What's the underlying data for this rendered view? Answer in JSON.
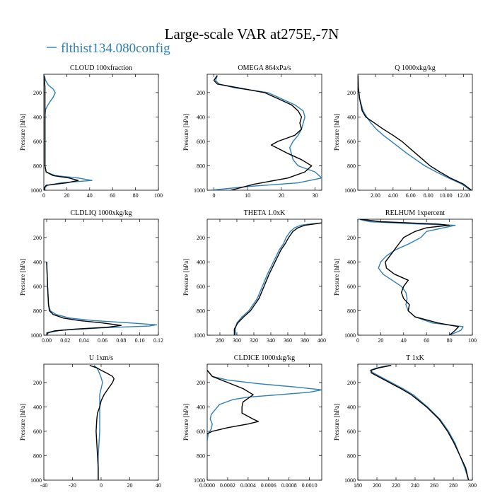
{
  "title": "Large-scale VAR at275E,-7N",
  "legend": {
    "label": "flthist134.080config",
    "color": "#2e7fb5"
  },
  "colors": {
    "series_0": "#2e7fb5",
    "series_1": "#000000"
  },
  "chart_data": [
    {
      "type": "line",
      "title": "CLOUD  100xfraction",
      "ylabel": "Pressure [hPa]",
      "xlabel": "",
      "xlim": [
        0,
        100
      ],
      "ylim": [
        1000,
        50
      ],
      "y_inverted": true,
      "xticks": [
        "0",
        "20",
        "40",
        "60",
        "80",
        "100"
      ],
      "xtick_values": [
        0,
        20,
        40,
        60,
        80,
        100
      ],
      "yticks": [
        "200",
        "400",
        "600",
        "800",
        "1000"
      ],
      "ytick_values": [
        200,
        400,
        600,
        800,
        1000
      ],
      "series": [
        {
          "y": [
            60,
            100,
            140,
            170,
            200,
            240,
            280,
            310,
            340,
            400,
            600,
            800,
            850,
            880,
            900,
            920,
            940,
            960,
            980,
            1000
          ],
          "x": [
            0.5,
            1.5,
            4,
            8,
            10,
            8,
            5,
            3,
            1.5,
            1,
            1,
            1,
            2,
            10,
            30,
            42,
            15,
            3,
            1,
            1
          ]
        },
        {
          "y": [
            60,
            100,
            150,
            200,
            300,
            400,
            600,
            800,
            850,
            880,
            900,
            920,
            940,
            960,
            980,
            1000
          ],
          "x": [
            0,
            0.5,
            1,
            1,
            1,
            1,
            1,
            1,
            2,
            8,
            22,
            30,
            20,
            2,
            0.5,
            0.5
          ]
        }
      ]
    },
    {
      "type": "line",
      "title": "OMEGA  864xPa/s",
      "ylabel": "Pressure [hPa]",
      "xlabel": "",
      "xlim": [
        -2,
        32
      ],
      "ylim": [
        1000,
        50
      ],
      "y_inverted": true,
      "xticks": [
        "0",
        "10",
        "20",
        "30"
      ],
      "xtick_values": [
        0,
        10,
        20,
        30
      ],
      "yticks": [
        "200",
        "400",
        "600",
        "800",
        "1000"
      ],
      "ytick_values": [
        200,
        400,
        600,
        800,
        1000
      ],
      "series": [
        {
          "y": [
            60,
            100,
            130,
            160,
            200,
            250,
            300,
            350,
            400,
            450,
            500,
            550,
            600,
            650,
            700,
            750,
            800,
            850,
            900,
            940,
            970,
            1000
          ],
          "x": [
            1,
            0.5,
            1.5,
            6,
            16,
            20,
            24,
            26.5,
            27,
            26.5,
            26,
            25,
            23.5,
            22.5,
            23,
            23.5,
            25,
            30,
            32,
            25,
            10,
            -1
          ]
        },
        {
          "y": [
            60,
            100,
            130,
            160,
            200,
            250,
            300,
            350,
            400,
            450,
            500,
            550,
            600,
            630,
            650,
            700,
            750,
            800,
            850,
            900,
            950,
            1000
          ],
          "x": [
            1,
            0,
            1,
            7,
            15,
            19,
            23,
            25,
            26,
            25.5,
            26,
            24,
            19,
            17,
            18.5,
            22,
            26,
            29,
            27,
            22,
            12,
            5
          ]
        }
      ]
    },
    {
      "type": "line",
      "title": "Q  1000xkg/kg",
      "ylabel": "Pressure [hPa]",
      "xlabel": "",
      "xlim": [
        0,
        13
      ],
      "ylim": [
        1000,
        50
      ],
      "y_inverted": true,
      "xticks": [
        "2.00",
        "4.00",
        "6.00",
        "8.00",
        "10.00",
        "12.00"
      ],
      "xtick_values": [
        2,
        4,
        6,
        8,
        10,
        12
      ],
      "yticks": [
        "200",
        "400",
        "600",
        "800",
        "1000"
      ],
      "ytick_values": [
        200,
        400,
        600,
        800,
        1000
      ],
      "series": [
        {
          "y": [
            60,
            150,
            250,
            350,
            400,
            450,
            500,
            550,
            600,
            650,
            700,
            750,
            800,
            850,
            900,
            950,
            1000
          ],
          "x": [
            0.02,
            0.05,
            0.2,
            0.6,
            1,
            1.5,
            2.1,
            2.9,
            3.8,
            4.7,
            5.6,
            6.6,
            7.6,
            8.9,
            10.3,
            11.8,
            12.8
          ]
        },
        {
          "y": [
            60,
            150,
            250,
            350,
            400,
            450,
            500,
            550,
            600,
            650,
            700,
            750,
            800,
            850,
            900,
            950,
            1000
          ],
          "x": [
            0.02,
            0.05,
            0.2,
            0.5,
            0.9,
            1.9,
            2.9,
            4,
            5,
            5.8,
            6.6,
            7.4,
            8.2,
            9.3,
            10.5,
            12,
            12.9
          ]
        }
      ]
    },
    {
      "type": "line",
      "title": "CLDLIQ  1000xkg/kg",
      "ylabel": "Pressure [hPa]",
      "xlabel": "",
      "xlim": [
        -0.003,
        0.12
      ],
      "ylim": [
        1000,
        50
      ],
      "y_inverted": true,
      "xticks": [
        "0.00",
        "0.02",
        "0.04",
        "0.06",
        "0.08",
        "0.10",
        "0.12"
      ],
      "xtick_values": [
        0,
        0.02,
        0.04,
        0.06,
        0.08,
        0.1,
        0.12
      ],
      "yticks": [
        "200",
        "400",
        "600",
        "800",
        "1000"
      ],
      "ytick_values": [
        200,
        400,
        600,
        800,
        1000
      ],
      "series": [
        {
          "y": [
            400,
            600,
            750,
            800,
            830,
            860,
            880,
            900,
            915,
            925,
            940,
            960,
            980,
            1000
          ],
          "x": [
            0,
            0.001,
            0.002,
            0.004,
            0.01,
            0.025,
            0.05,
            0.09,
            0.118,
            0.11,
            0.06,
            0.015,
            0.002,
            0
          ]
        },
        {
          "y": [
            400,
            600,
            750,
            800,
            830,
            860,
            880,
            900,
            920,
            935,
            950,
            965,
            980,
            1000
          ],
          "x": [
            0,
            0.001,
            0.002,
            0.003,
            0.007,
            0.018,
            0.035,
            0.06,
            0.08,
            0.065,
            0.03,
            0.008,
            0.001,
            0
          ]
        }
      ]
    },
    {
      "type": "line",
      "title": "THETA  1.0xK",
      "ylabel": "Pressure [hPa]",
      "xlabel": "",
      "xlim": [
        265,
        400
      ],
      "ylim": [
        1000,
        50
      ],
      "y_inverted": true,
      "xticks": [
        "280",
        "300",
        "320",
        "340",
        "360",
        "380",
        "400"
      ],
      "xtick_values": [
        280,
        300,
        320,
        340,
        360,
        380,
        400
      ],
      "yticks": [
        "200",
        "400",
        "600",
        "800",
        "1000"
      ],
      "ytick_values": [
        200,
        400,
        600,
        800,
        1000
      ],
      "series": [
        {
          "y": [
            80,
            90,
            100,
            120,
            150,
            200,
            250,
            300,
            400,
            500,
            600,
            700,
            800,
            850,
            900,
            950,
            1000
          ],
          "x": [
            400,
            385,
            375,
            368,
            363,
            358,
            355,
            350,
            343,
            336,
            330,
            324,
            314,
            306,
            300,
            298,
            299
          ]
        },
        {
          "y": [
            80,
            90,
            100,
            120,
            150,
            200,
            250,
            300,
            400,
            500,
            600,
            700,
            800,
            850,
            900,
            950,
            1000
          ],
          "x": [
            400,
            390,
            380,
            372,
            366,
            361,
            357,
            352,
            345,
            338,
            332,
            326,
            316,
            308,
            301,
            297,
            297
          ]
        }
      ]
    },
    {
      "type": "line",
      "title": "RELHUM  1xpercent",
      "ylabel": "Pressure [hPa]",
      "xlabel": "",
      "xlim": [
        0,
        100
      ],
      "ylim": [
        1000,
        50
      ],
      "y_inverted": true,
      "xticks": [
        "0",
        "20",
        "40",
        "60",
        "80",
        "100"
      ],
      "xtick_values": [
        0,
        20,
        40,
        60,
        80,
        100
      ],
      "yticks": [
        "200",
        "400",
        "600",
        "800",
        "1000"
      ],
      "ytick_values": [
        200,
        400,
        600,
        800,
        1000
      ],
      "series": [
        {
          "y": [
            50,
            70,
            90,
            100,
            120,
            150,
            200,
            250,
            300,
            350,
            400,
            450,
            500,
            550,
            600,
            650,
            700,
            750,
            800,
            850,
            900,
            930,
            960,
            1000
          ],
          "x": [
            1,
            10,
            55,
            85,
            75,
            60,
            55,
            45,
            33,
            25,
            20,
            18,
            22,
            30,
            38,
            42,
            43,
            42,
            44,
            50,
            65,
            92,
            90,
            80
          ]
        },
        {
          "y": [
            50,
            70,
            90,
            100,
            120,
            150,
            200,
            250,
            300,
            350,
            400,
            450,
            500,
            550,
            600,
            650,
            700,
            750,
            800,
            850,
            900,
            930,
            960,
            1000
          ],
          "x": [
            2,
            20,
            70,
            80,
            60,
            50,
            40,
            36,
            32,
            28,
            24,
            25,
            32,
            44,
            40,
            38,
            40,
            45,
            44,
            50,
            70,
            88,
            85,
            80
          ]
        }
      ]
    },
    {
      "type": "line",
      "title": "U  1xm/s",
      "ylabel": "Pressure [hPa]",
      "xlabel": "",
      "xlim": [
        -40,
        40
      ],
      "ylim": [
        1000,
        50
      ],
      "y_inverted": true,
      "xticks": [
        "-40",
        "-20",
        "0",
        "20",
        "40"
      ],
      "xtick_values": [
        -40,
        -20,
        0,
        20,
        40
      ],
      "yticks": [
        "200",
        "400",
        "600",
        "800",
        "1000"
      ],
      "ytick_values": [
        200,
        400,
        600,
        800,
        1000
      ],
      "series": [
        {
          "y": [
            60,
            80,
            100,
            130,
            160,
            200,
            250,
            300,
            400,
            500,
            600,
            700,
            800,
            900,
            1000
          ],
          "x": [
            -5,
            -3,
            -2,
            -1,
            0,
            1,
            0,
            -1,
            -1,
            -1,
            -1,
            -1.5,
            -2,
            -2,
            -2
          ]
        },
        {
          "y": [
            60,
            80,
            100,
            130,
            150,
            170,
            200,
            250,
            300,
            350,
            400,
            450,
            500,
            600,
            700,
            800,
            900,
            1000
          ],
          "x": [
            -8,
            -3,
            0,
            5,
            8,
            9,
            8,
            5,
            2,
            0,
            -1,
            -2.5,
            -3,
            -3.5,
            -3,
            -2.5,
            -2,
            -2
          ]
        }
      ]
    },
    {
      "type": "line",
      "title": "CLDICE  1000xkg/kg",
      "ylabel": "Pressure [hPa]",
      "xlabel": "",
      "xlim": [
        0,
        0.00112
      ],
      "ylim": [
        1000,
        50
      ],
      "y_inverted": true,
      "xticks": [
        "0.0000",
        "0.0002",
        "0.0004",
        "0.0006",
        "0.0008",
        "0.0010"
      ],
      "xtick_values": [
        0,
        0.0002,
        0.0004,
        0.0006,
        0.0008,
        0.001
      ],
      "yticks": [
        "200",
        "400",
        "600",
        "800",
        "1000"
      ],
      "ytick_values": [
        200,
        400,
        600,
        800,
        1000
      ],
      "series": [
        {
          "y": [
            100,
            150,
            180,
            210,
            240,
            260,
            280,
            300,
            320,
            340,
            380,
            420,
            460,
            500,
            540,
            580,
            620,
            680
          ],
          "x": [
            0,
            5e-05,
            0.0002,
            0.0005,
            0.0009,
            0.00112,
            0.001,
            0.0007,
            0.0004,
            0.00025,
            0.00012,
            8e-05,
            4e-05,
            3e-05,
            5e-05,
            4e-05,
            1e-05,
            0
          ]
        },
        {
          "y": [
            100,
            150,
            200,
            250,
            300,
            330,
            360,
            400,
            450,
            500,
            520,
            540,
            570,
            600,
            620
          ],
          "x": [
            0,
            5e-05,
            0.0002,
            0.00035,
            0.00045,
            0.0004,
            0.00035,
            0.00034,
            0.00034,
            0.00045,
            0.0005,
            0.0004,
            0.0002,
            5e-05,
            0
          ]
        }
      ]
    },
    {
      "type": "line",
      "title": "T  1xK",
      "ylabel": "Pressure [hPa]",
      "xlabel": "",
      "xlim": [
        180,
        300
      ],
      "ylim": [
        1000,
        50
      ],
      "y_inverted": true,
      "xticks": [
        "180",
        "200",
        "220",
        "240",
        "260",
        "280",
        "300"
      ],
      "xtick_values": [
        180,
        200,
        220,
        240,
        260,
        280,
        300
      ],
      "yticks": [
        "200",
        "400",
        "600",
        "800",
        "1000"
      ],
      "ytick_values": [
        200,
        400,
        600,
        800,
        1000
      ],
      "series": [
        {
          "y": [
            60,
            80,
            100,
            120,
            150,
            200,
            250,
            300,
            400,
            500,
            600,
            700,
            800,
            900,
            1000
          ],
          "x": [
            213,
            200,
            193,
            196,
            203,
            215,
            227,
            238,
            253,
            266,
            275,
            282,
            287,
            292,
            296
          ]
        },
        {
          "y": [
            60,
            80,
            100,
            120,
            150,
            200,
            250,
            300,
            400,
            500,
            600,
            700,
            800,
            900,
            1000
          ],
          "x": [
            215,
            202,
            194,
            194,
            201,
            213,
            225,
            236,
            252,
            265,
            274,
            281,
            287,
            293,
            296
          ]
        }
      ]
    }
  ]
}
